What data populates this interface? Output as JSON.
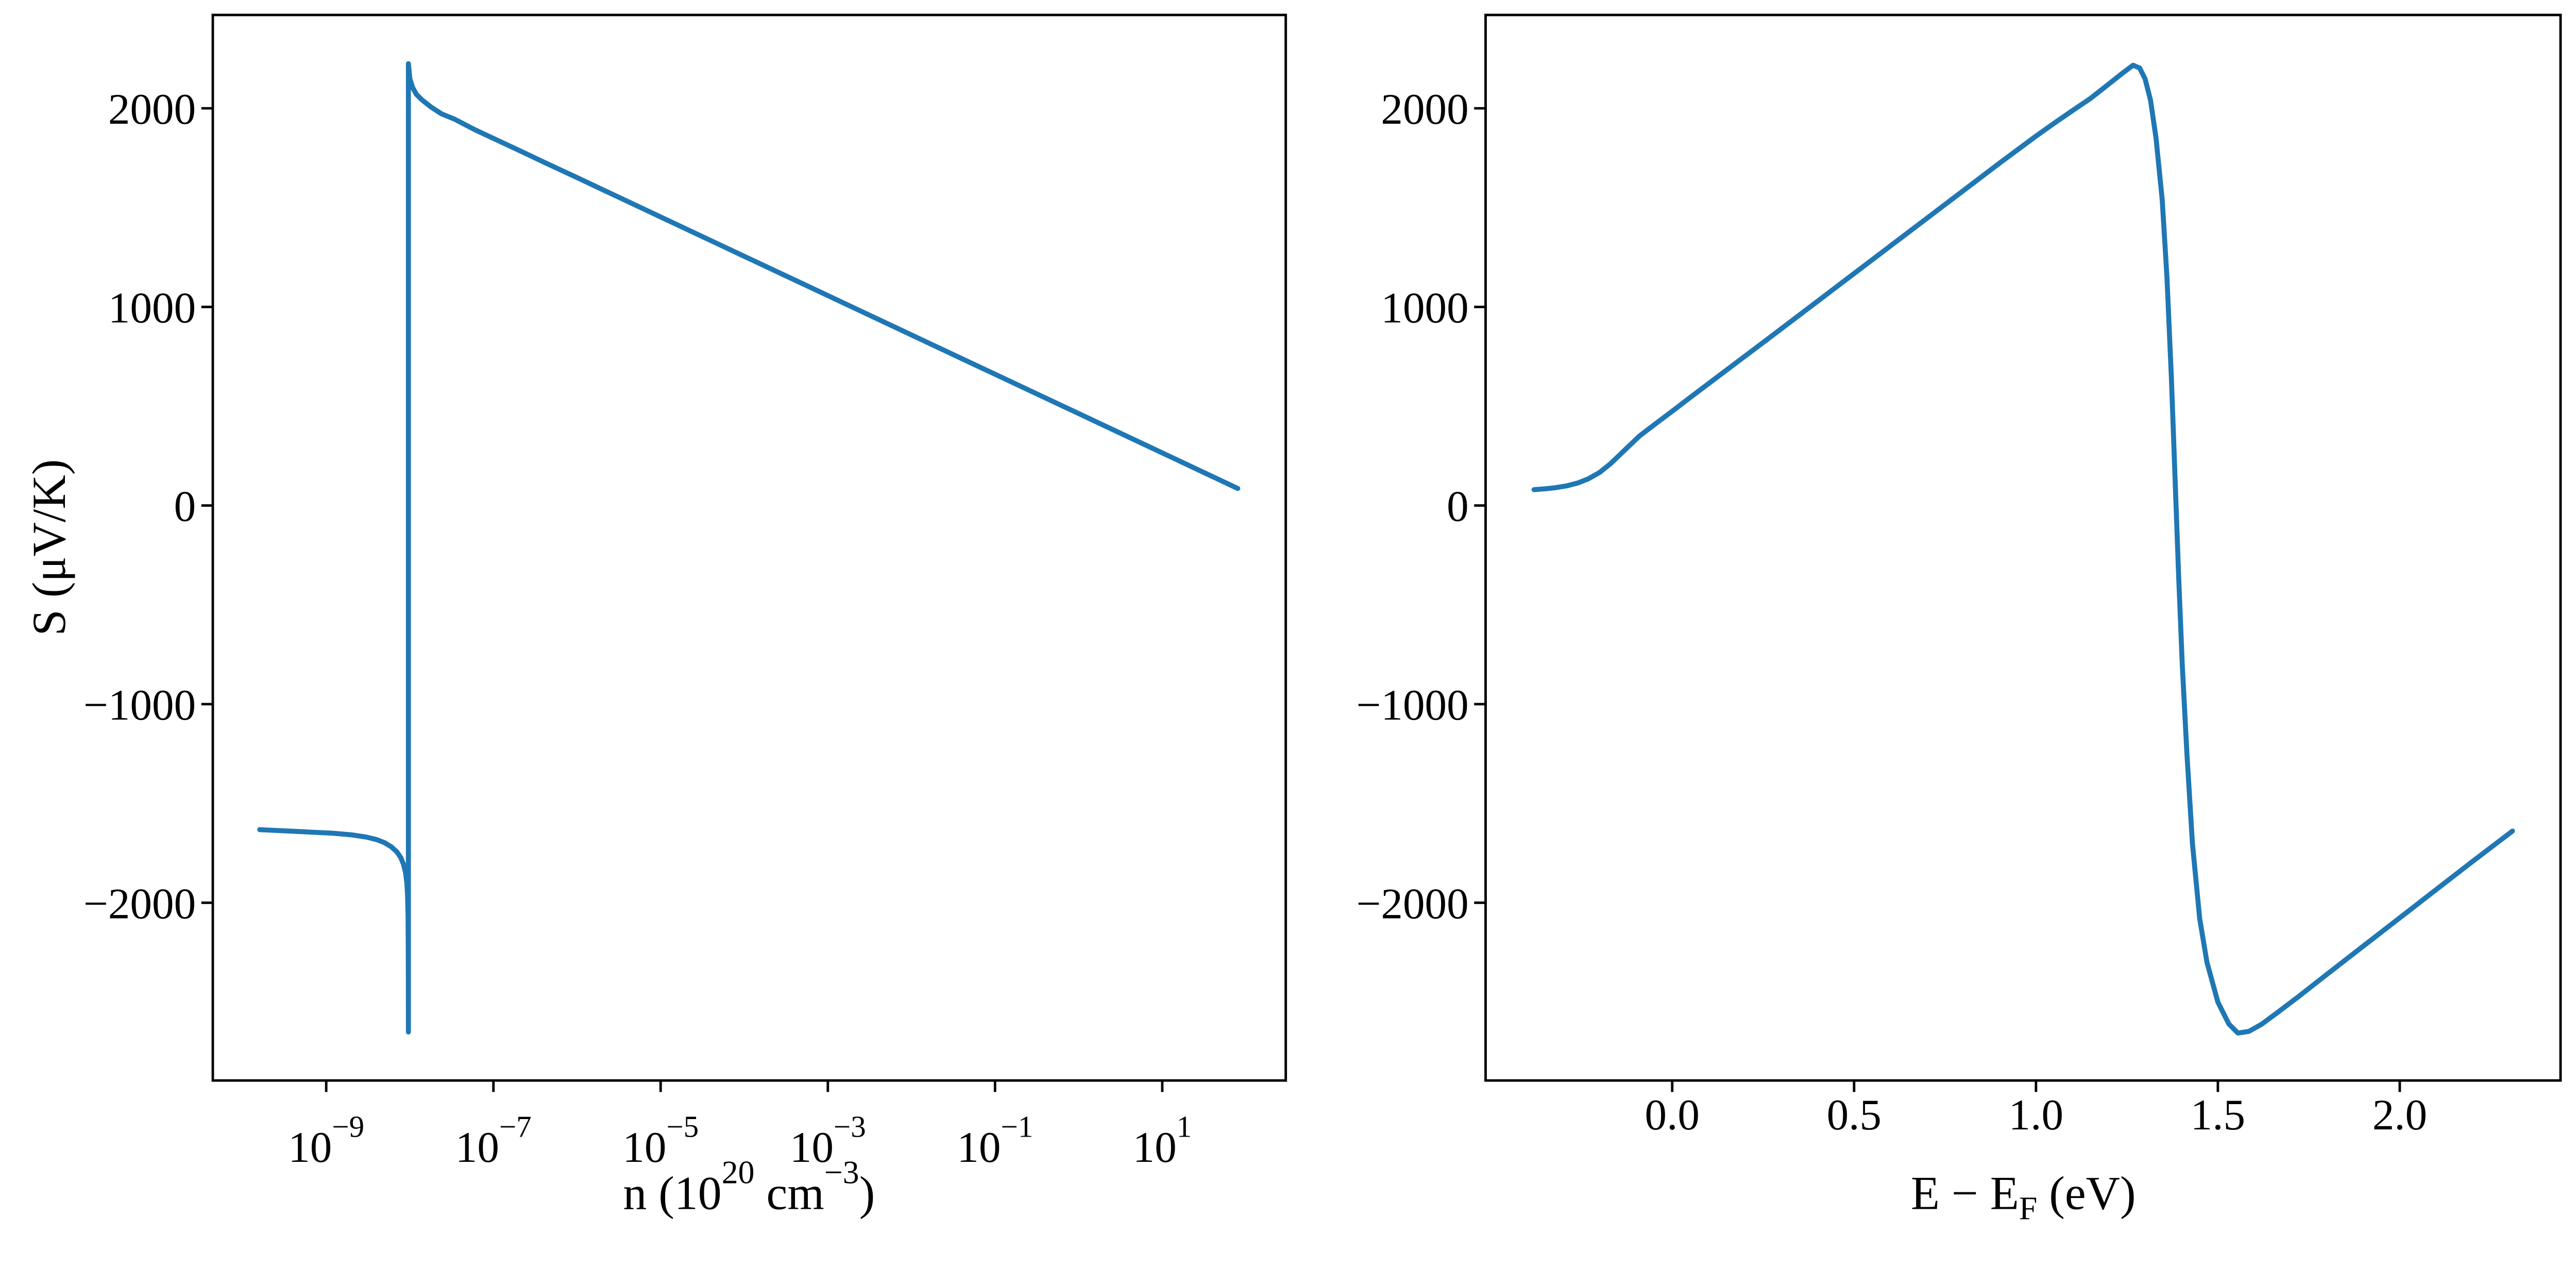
{
  "figure": {
    "ylabel": "S (μV/K)",
    "left_xlabel": {
      "p1": "n (10",
      "sup1": "20",
      "p2": " cm",
      "sup2": "−3",
      "p3": ")"
    },
    "right_xlabel": {
      "p1": "E − E",
      "sub": "F",
      "p2": " (eV)"
    },
    "line_color": "#1f77b4"
  },
  "chart_data": [
    {
      "type": "line",
      "panel": "left",
      "title": "",
      "xlabel": "n (10^20 cm^-3)",
      "ylabel": "S (μV/K)",
      "xscale": "log",
      "xlim": [
        4.4e-11,
        300
      ],
      "ylim": [
        -2895,
        2470
      ],
      "grid": false,
      "legend": "none",
      "xticks": [
        1e-09,
        1e-07,
        1e-05,
        0.001,
        0.1,
        10
      ],
      "xtick_label_base": "10",
      "xtick_label_exponents": [
        "−9",
        "−7",
        "−5",
        "−3",
        "−1",
        "1"
      ],
      "yticks": [
        2000,
        1000,
        0,
        -1000,
        -2000
      ],
      "ytick_labels": [
        "2000",
        "1000",
        "0",
        "−1000",
        "−2000"
      ],
      "series": [
        {
          "name": "S_vs_n",
          "color": "#1f77b4",
          "points": [
            [
              1.6e-10,
              -1632
            ],
            [
              2.5e-10,
              -1636
            ],
            [
              4e-10,
              -1640
            ],
            [
              7e-10,
              -1645
            ],
            [
              1.2e-09,
              -1650
            ],
            [
              2e-09,
              -1658
            ],
            [
              3e-09,
              -1669
            ],
            [
              4e-09,
              -1682
            ],
            [
              5e-09,
              -1698
            ],
            [
              6e-09,
              -1718
            ],
            [
              7e-09,
              -1744
            ],
            [
              7.8e-09,
              -1773
            ],
            [
              8.4e-09,
              -1806
            ],
            [
              8.9e-09,
              -1848
            ],
            [
              9.2e-09,
              -1898
            ],
            [
              9.4e-09,
              -1960
            ],
            [
              9.52e-09,
              -2060
            ],
            [
              9.58e-09,
              -2220
            ],
            [
              9.61e-09,
              -2420
            ],
            [
              9.62e-09,
              -2651
            ],
            [
              9.62e-09,
              2225
            ],
            [
              1e-08,
              2150
            ],
            [
              1.08e-08,
              2105
            ],
            [
              1.2e-08,
              2070
            ],
            [
              1.4e-08,
              2042
            ],
            [
              1.8e-08,
              2006
            ],
            [
              2.4e-08,
              1972
            ],
            [
              3.4e-08,
              1946
            ],
            [
              6e-08,
              1892
            ],
            [
              1.3e-07,
              1826
            ],
            [
              2.5e-07,
              1770
            ],
            [
              4.2e-07,
              1725
            ],
            [
              1e-06,
              1651
            ],
            [
              1e-05,
              1453
            ],
            [
              0.0001,
              1255
            ],
            [
              0.001,
              1057
            ],
            [
              0.01,
              859
            ],
            [
              0.1,
              661
            ],
            [
              1,
              463
            ],
            [
              10,
              265
            ],
            [
              80,
              86
            ]
          ]
        }
      ]
    },
    {
      "type": "line",
      "panel": "right",
      "title": "",
      "xlabel": "E − E_F (eV)",
      "ylabel": "S (μV/K)",
      "xscale": "linear",
      "xlim": [
        -0.513,
        2.442
      ],
      "ylim": [
        -2895,
        2470
      ],
      "grid": false,
      "legend": "none",
      "xticks": [
        0.0,
        0.5,
        1.0,
        1.5,
        2.0
      ],
      "xtick_labels": [
        "0.0",
        "0.5",
        "1.0",
        "1.5",
        "2.0"
      ],
      "yticks": [
        2000,
        1000,
        0,
        -1000,
        -2000
      ],
      "ytick_labels": [
        "2000",
        "1000",
        "0",
        "−1000",
        "−2000"
      ],
      "series": [
        {
          "name": "S_vs_E",
          "color": "#1f77b4",
          "points": [
            [
              -0.38,
              80
            ],
            [
              -0.35,
              84
            ],
            [
              -0.32,
              90
            ],
            [
              -0.29,
              99
            ],
            [
              -0.26,
              113
            ],
            [
              -0.23,
              135
            ],
            [
              -0.2,
              166
            ],
            [
              -0.17,
              210
            ],
            [
              -0.13,
              280
            ],
            [
              -0.09,
              350
            ],
            [
              -0.04,
              420
            ],
            [
              0.0,
              475
            ],
            [
              0.05,
              545
            ],
            [
              0.1,
              614
            ],
            [
              0.15,
              683
            ],
            [
              0.2,
              752
            ],
            [
              0.3,
              890
            ],
            [
              0.4,
              1029
            ],
            [
              0.5,
              1168
            ],
            [
              0.6,
              1307
            ],
            [
              0.7,
              1446
            ],
            [
              0.8,
              1585
            ],
            [
              0.9,
              1724
            ],
            [
              1.0,
              1860
            ],
            [
              1.05,
              1925
            ],
            [
              1.1,
              1988
            ],
            [
              1.15,
              2050
            ],
            [
              1.2,
              2122
            ],
            [
              1.24,
              2180
            ],
            [
              1.267,
              2217
            ],
            [
              1.285,
              2203
            ],
            [
              1.3,
              2148
            ],
            [
              1.315,
              2040
            ],
            [
              1.33,
              1850
            ],
            [
              1.347,
              1539
            ],
            [
              1.36,
              1150
            ],
            [
              1.372,
              650
            ],
            [
              1.382,
              150
            ],
            [
              1.392,
              -350
            ],
            [
              1.402,
              -800
            ],
            [
              1.415,
              -1250
            ],
            [
              1.43,
              -1700
            ],
            [
              1.45,
              -2080
            ],
            [
              1.47,
              -2300
            ],
            [
              1.5,
              -2500
            ],
            [
              1.53,
              -2610
            ],
            [
              1.555,
              -2656
            ],
            [
              1.585,
              -2648
            ],
            [
              1.62,
              -2612
            ],
            [
              1.66,
              -2558
            ],
            [
              1.72,
              -2475
            ],
            [
              1.8,
              -2360
            ],
            [
              1.9,
              -2218
            ],
            [
              2.0,
              -2076
            ],
            [
              2.1,
              -1934
            ],
            [
              2.2,
              -1792
            ],
            [
              2.31,
              -1639
            ]
          ]
        }
      ]
    }
  ]
}
